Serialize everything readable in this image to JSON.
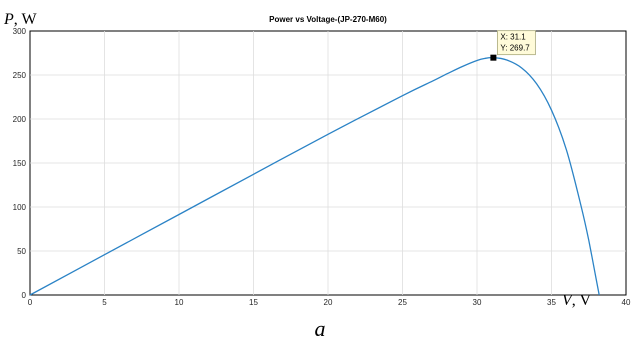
{
  "chart_data": {
    "type": "line",
    "title": "Power vs Voltage-(JP-270-M60)",
    "ylabel_var": "P",
    "ylabel_unit": ", W",
    "xlabel_var": "V",
    "xlabel_unit": ", V",
    "xlim": [
      0,
      40
    ],
    "ylim": [
      0,
      300
    ],
    "xticks": [
      0,
      5,
      10,
      15,
      20,
      25,
      30,
      35,
      40
    ],
    "yticks": [
      0,
      50,
      100,
      150,
      200,
      250,
      300
    ],
    "grid": true,
    "series": [
      {
        "color": "#2b83c6",
        "x": [
          0,
          5,
          10,
          15,
          20,
          25,
          27,
          28,
          29,
          30,
          30.5,
          31.1,
          32,
          33,
          34,
          35,
          36,
          37,
          37.5,
          38,
          38.2
        ],
        "y": [
          0,
          45.8,
          91.5,
          137.2,
          182.6,
          226.5,
          243,
          251.5,
          259.5,
          266.5,
          268.8,
          269.7,
          267,
          258,
          240,
          210,
          165,
          100,
          62,
          18,
          0
        ]
      }
    ],
    "annotation": {
      "x": 31.1,
      "y": 269.7,
      "x_label": "X: 31.1",
      "y_label": "Y: 269.7"
    }
  },
  "caption": "a"
}
